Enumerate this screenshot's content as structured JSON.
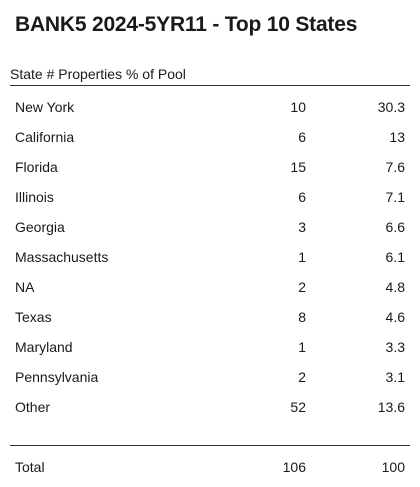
{
  "chart_data": {
    "type": "table",
    "title": "BANK5 2024-5YR11 - Top 10 States",
    "columns": [
      "State",
      "# Properties",
      "% of Pool"
    ],
    "rows": [
      {
        "state": "New York",
        "properties": "10",
        "pct": "30.3"
      },
      {
        "state": "California",
        "properties": "6",
        "pct": "13"
      },
      {
        "state": "Florida",
        "properties": "15",
        "pct": "7.6"
      },
      {
        "state": "Illinois",
        "properties": "6",
        "pct": "7.1"
      },
      {
        "state": "Georgia",
        "properties": "3",
        "pct": "6.6"
      },
      {
        "state": "Massachusetts",
        "properties": "1",
        "pct": "6.1"
      },
      {
        "state": "NA",
        "properties": "2",
        "pct": "4.8"
      },
      {
        "state": "Texas",
        "properties": "8",
        "pct": "4.6"
      },
      {
        "state": "Maryland",
        "properties": "1",
        "pct": "3.3"
      },
      {
        "state": "Pennsylvania",
        "properties": "2",
        "pct": "3.1"
      },
      {
        "state": "Other",
        "properties": "52",
        "pct": "13.6"
      }
    ],
    "total": {
      "state": "Total",
      "properties": "106",
      "pct": "100"
    }
  }
}
